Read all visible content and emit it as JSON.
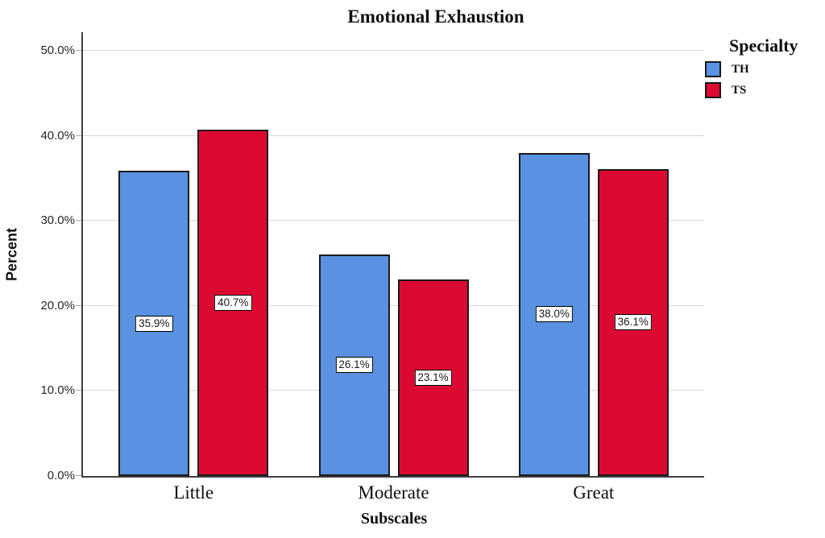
{
  "title": "Emotional Exhaustion",
  "legend": {
    "title": "Specialty"
  },
  "chart_data": {
    "type": "bar",
    "title": "Emotional Exhaustion",
    "xlabel": "Subscales",
    "ylabel": "Percent",
    "categories": [
      "Little",
      "Moderate",
      "Great"
    ],
    "series": [
      {
        "name": "TH",
        "color": "#5a91e1",
        "values": [
          35.9,
          26.1,
          38.0
        ],
        "labels": [
          "35.9%",
          "26.1%",
          "38.0%"
        ]
      },
      {
        "name": "TS",
        "color": "#dc0a32",
        "values": [
          40.7,
          23.1,
          36.1
        ],
        "labels": [
          "40.7%",
          "23.1%",
          "36.1%"
        ]
      }
    ],
    "y_ticks": [
      {
        "value": 0,
        "label": "0.0%"
      },
      {
        "value": 10,
        "label": "10.0%"
      },
      {
        "value": 20,
        "label": "20.0%"
      },
      {
        "value": 30,
        "label": "30.0%"
      },
      {
        "value": 40,
        "label": "40.0%"
      },
      {
        "value": 50,
        "label": "50.0%"
      }
    ],
    "ylim": [
      0,
      52.2
    ],
    "grid": true,
    "legend_position": "right",
    "grid_color": "#d9d9d9",
    "axis_color": "#3f3f3f",
    "bar_border_color": "#1a1a1a"
  }
}
